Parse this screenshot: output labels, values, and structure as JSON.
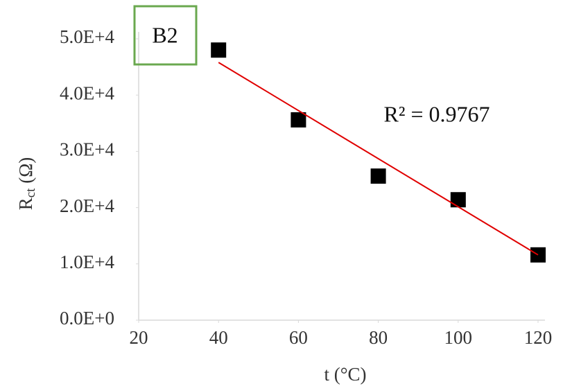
{
  "chart_data": {
    "type": "scatter",
    "annotation": "B2",
    "annotation_color": "#6aa84f",
    "r2_label": "R² = 0.9767",
    "x_label": "t (°C)",
    "y_label": {
      "main": "R",
      "sub": "ct",
      "unit": " (Ω)"
    },
    "xlim": [
      20,
      120
    ],
    "xticks": [
      20,
      40,
      60,
      80,
      100,
      120
    ],
    "ylim": [
      0,
      50000
    ],
    "yticks": [
      {
        "value": 0,
        "label": "0.0E+0"
      },
      {
        "value": 10000,
        "label": "1.0E+4"
      },
      {
        "value": 20000,
        "label": "2.0E+4"
      },
      {
        "value": 30000,
        "label": "3.0E+4"
      },
      {
        "value": 40000,
        "label": "4.0E+4"
      },
      {
        "value": 50000,
        "label": "5.0E+4"
      }
    ],
    "series": [
      {
        "color": "#000000",
        "x": [
          40,
          60,
          80,
          100,
          120
        ],
        "values": [
          48000,
          35600,
          25600,
          21400,
          11600
        ]
      }
    ],
    "trendline": {
      "color": "#e00000",
      "x": [
        40,
        120
      ],
      "values": [
        45800,
        11600
      ]
    }
  }
}
